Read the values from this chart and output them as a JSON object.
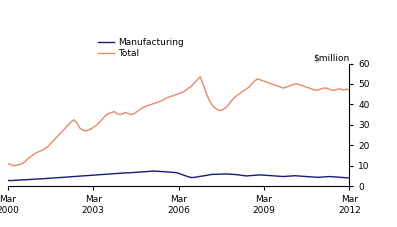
{
  "ylabel_right": "$million",
  "manufacturing_color": "#1a1a7a",
  "total_color": "#e8896a",
  "legend_labels": [
    "Manufacturing",
    "Total"
  ],
  "x_tick_labels": [
    "Mar\n2000",
    "Mar\n2003",
    "Mar\n2006",
    "Mar\n2009",
    "Mar\n2012"
  ],
  "x_tick_positions": [
    0,
    12,
    24,
    36,
    48
  ],
  "ylim": [
    0,
    60
  ],
  "yticks": [
    0,
    10,
    20,
    30,
    40,
    50,
    60
  ],
  "manufacturing": [
    2.8,
    2.7,
    2.8,
    2.9,
    3.0,
    3.1,
    3.1,
    3.2,
    3.3,
    3.4,
    3.5,
    3.5,
    3.6,
    3.7,
    3.8,
    3.9,
    4.0,
    4.1,
    4.2,
    4.3,
    4.4,
    4.5,
    4.6,
    4.7,
    4.8,
    4.9,
    5.0,
    5.1,
    5.2,
    5.3,
    5.4,
    5.5,
    5.6,
    5.7,
    5.8,
    5.9,
    6.0,
    6.1,
    6.2,
    6.3,
    6.4,
    6.5,
    6.5,
    6.6,
    6.7,
    6.8,
    6.9,
    7.0,
    7.1,
    7.2,
    7.3,
    7.4,
    7.3,
    7.2,
    7.1,
    7.0,
    6.9,
    6.8,
    6.7,
    6.5,
    6.0,
    5.5,
    5.0,
    4.5,
    4.2,
    4.3,
    4.5,
    4.8,
    5.0,
    5.2,
    5.5,
    5.7,
    5.8,
    5.8,
    5.9,
    5.9,
    6.0,
    5.9,
    5.8,
    5.7,
    5.6,
    5.4,
    5.2,
    5.0,
    5.1,
    5.2,
    5.3,
    5.4,
    5.5,
    5.4,
    5.3,
    5.2,
    5.1,
    5.0,
    4.9,
    4.8,
    4.7,
    4.8,
    4.9,
    5.0,
    5.1,
    5.0,
    4.9,
    4.8,
    4.7,
    4.6,
    4.5,
    4.4,
    4.3,
    4.4,
    4.5,
    4.6,
    4.7,
    4.6,
    4.5,
    4.4,
    4.3,
    4.2,
    4.1,
    4.0
  ],
  "total": [
    11.0,
    10.5,
    10.0,
    10.2,
    10.5,
    11.0,
    12.0,
    13.5,
    14.5,
    15.5,
    16.5,
    17.0,
    17.5,
    18.5,
    19.5,
    21.0,
    22.5,
    24.0,
    25.5,
    27.0,
    28.5,
    30.0,
    31.5,
    32.5,
    31.0,
    28.5,
    27.5,
    27.0,
    27.5,
    28.0,
    29.0,
    30.0,
    31.5,
    33.0,
    34.5,
    35.5,
    36.0,
    36.5,
    35.5,
    35.0,
    35.5,
    36.0,
    35.5,
    35.0,
    35.5,
    36.5,
    37.5,
    38.5,
    39.0,
    39.5,
    40.0,
    40.5,
    41.0,
    41.5,
    42.0,
    43.0,
    43.5,
    44.0,
    44.5,
    45.0,
    45.5,
    46.0,
    47.0,
    48.0,
    49.0,
    50.5,
    52.0,
    53.5,
    50.0,
    46.0,
    42.5,
    40.0,
    38.5,
    37.5,
    37.0,
    37.5,
    38.5,
    40.0,
    42.0,
    43.5,
    44.5,
    45.5,
    46.5,
    47.5,
    48.5,
    50.0,
    51.5,
    52.5,
    52.0,
    51.5,
    51.0,
    50.5,
    50.0,
    49.5,
    49.0,
    48.5,
    48.0,
    48.5,
    49.0,
    49.5,
    50.0,
    50.0,
    49.5,
    49.0,
    48.5,
    48.0,
    47.5,
    47.0,
    47.0,
    47.5,
    48.0,
    48.0,
    47.5,
    47.0,
    47.0,
    47.5,
    47.5,
    47.0,
    47.5,
    47.0
  ]
}
